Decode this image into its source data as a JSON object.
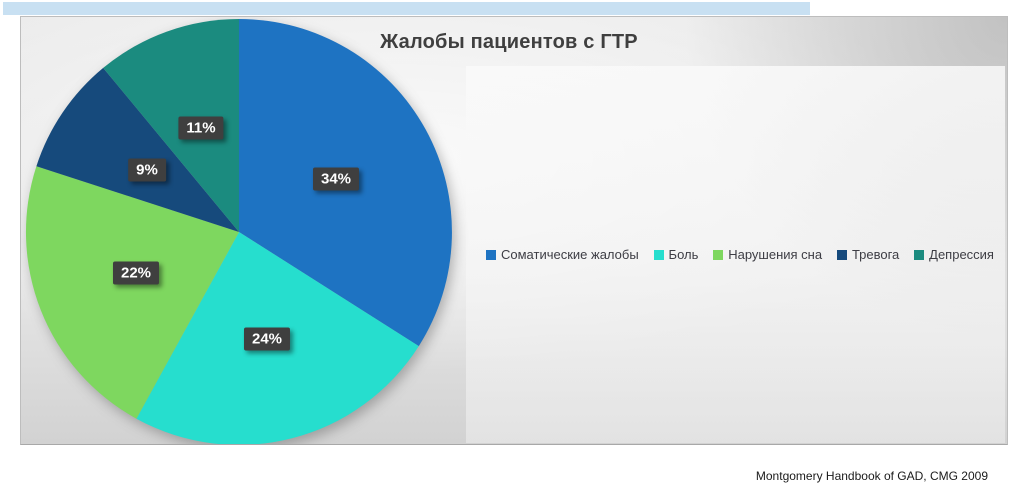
{
  "chart_data": {
    "type": "pie",
    "title": "Жалобы пациентов с ГТР",
    "categories": [
      "Соматические жалобы",
      "Боль",
      "Нарушения сна",
      "Тревога",
      "Депрессия"
    ],
    "values": [
      34,
      24,
      22,
      9,
      11
    ],
    "data_labels": [
      "34%",
      "24%",
      "22%",
      "9%",
      "11%"
    ],
    "colors": [
      "#1e73c2",
      "#26dece",
      "#7ed75f",
      "#164a7c",
      "#1b8b7f"
    ],
    "start_angle_deg": 0,
    "direction": "clockwise",
    "legend_position": "right-middle",
    "data_label_bg": "#3f3f3f",
    "data_label_color": "#ffffff"
  },
  "footer": {
    "source": "Montgomery Handbook of GAD, CMG 2009"
  }
}
